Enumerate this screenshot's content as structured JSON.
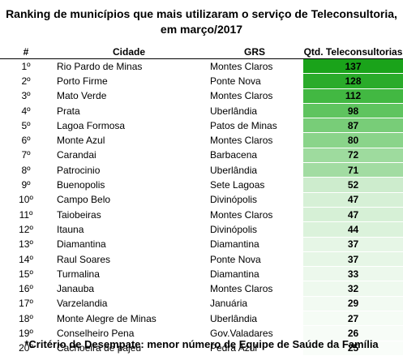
{
  "title_line1": "Ranking de municípios que mais utilizaram o serviço de Teleconsultoria,",
  "title_line2": "em março/2017",
  "headers": {
    "rank": "#",
    "city": "Cidade",
    "grs": "GRS",
    "qtd": "Qtd. Teleconsultorias"
  },
  "rows": [
    {
      "rank": "1º",
      "city": "Rio Pardo de Minas",
      "grs": "Montes Claros",
      "qtd": 137,
      "color": "#1aa31a"
    },
    {
      "rank": "2º",
      "city": "Porto Firme",
      "grs": "Ponte Nova",
      "qtd": 128,
      "color": "#2aab2a"
    },
    {
      "rank": "3º",
      "city": "Mato Verde",
      "grs": "Montes Claros",
      "qtd": 112,
      "color": "#42b842"
    },
    {
      "rank": "4º",
      "city": "Prata",
      "grs": "Uberlândia",
      "qtd": 98,
      "color": "#5fc45f"
    },
    {
      "rank": "5º",
      "city": "Lagoa Formosa",
      "grs": "Patos de Minas",
      "qtd": 87,
      "color": "#78cd78"
    },
    {
      "rank": "6º",
      "city": "Monte Azul",
      "grs": "Montes Claros",
      "qtd": 80,
      "color": "#8ad48a"
    },
    {
      "rank": "7º",
      "city": "Carandai",
      "grs": "Barbacena",
      "qtd": 72,
      "color": "#9edb9e"
    },
    {
      "rank": "8º",
      "city": "Patrocinio",
      "grs": "Uberlândia",
      "qtd": 71,
      "color": "#a2dca2"
    },
    {
      "rank": "9º",
      "city": "Buenopolis",
      "grs": "Sete Lagoas",
      "qtd": 52,
      "color": "#cdeccd"
    },
    {
      "rank": "10º",
      "city": "Campo Belo",
      "grs": "Divinópolis",
      "qtd": 47,
      "color": "#d6f0d6"
    },
    {
      "rank": "11º",
      "city": "Taiobeiras",
      "grs": "Montes Claros",
      "qtd": 47,
      "color": "#d6f0d6"
    },
    {
      "rank": "12º",
      "city": "Itauna",
      "grs": "Divinópolis",
      "qtd": 44,
      "color": "#dbf2db"
    },
    {
      "rank": "13º",
      "city": "Diamantina",
      "grs": "Diamantina",
      "qtd": 37,
      "color": "#e6f6e6"
    },
    {
      "rank": "14º",
      "city": "Raul Soares",
      "grs": "Ponte Nova",
      "qtd": 37,
      "color": "#e6f6e6"
    },
    {
      "rank": "15º",
      "city": "Turmalina",
      "grs": "Diamantina",
      "qtd": 33,
      "color": "#ecf8ec"
    },
    {
      "rank": "16º",
      "city": "Janauba",
      "grs": "Montes Claros",
      "qtd": 32,
      "color": "#eef9ee"
    },
    {
      "rank": "17º",
      "city": "Varzelandia",
      "grs": "Januária",
      "qtd": 29,
      "color": "#f2faf2"
    },
    {
      "rank": "18º",
      "city": "Monte Alegre de Minas",
      "grs": "Uberlândia",
      "qtd": 27,
      "color": "#f5fcf5"
    },
    {
      "rank": "19º",
      "city": "Conselheiro Pena",
      "grs": "Gov.Valadares",
      "qtd": 26,
      "color": "#f7fcf7"
    },
    {
      "rank": "20º",
      "city": "Cachoeira de pajeu",
      "grs": "Pedra Azul",
      "qtd": 25,
      "color": "#f9fdf9"
    }
  ],
  "footnote": "*Critério de Desempate: menor número de Equipe de Saúde da Família"
}
